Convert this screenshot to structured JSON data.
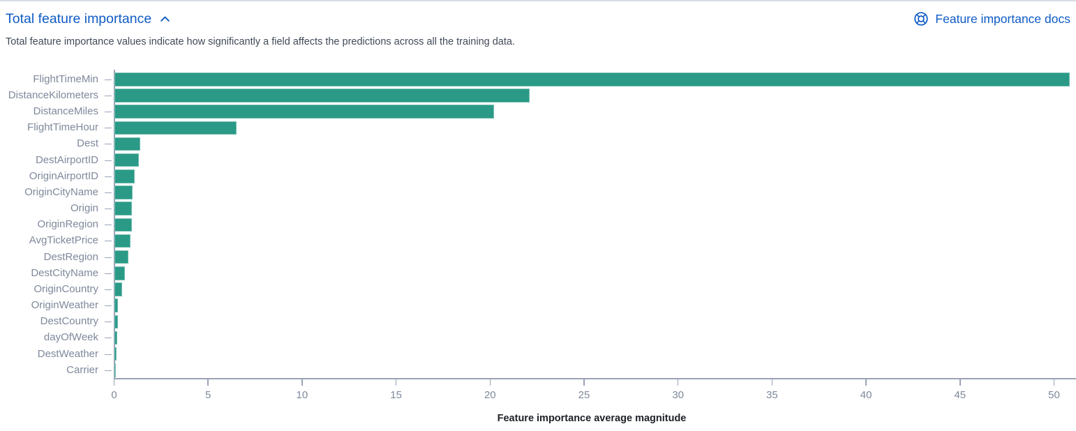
{
  "header": {
    "title": "Total feature importance",
    "docs_link_label": "Feature importance docs",
    "link_color": "#0f5bc5"
  },
  "description": "Total feature importance values indicate how significantly a field affects the predictions across all the training data.",
  "chart_data": {
    "type": "bar",
    "orientation": "horizontal",
    "title": "",
    "xlabel": "Feature importance average magnitude",
    "ylabel": "",
    "categories": [
      "FlightTimeMin",
      "DistanceKilometers",
      "DistanceMiles",
      "FlightTimeHour",
      "Dest",
      "DestAirportID",
      "OriginAirportID",
      "OriginCityName",
      "Origin",
      "OriginRegion",
      "AvgTicketPrice",
      "DestRegion",
      "DestCityName",
      "OriginCountry",
      "OriginWeather",
      "DestCountry",
      "dayOfWeek",
      "DestWeather",
      "Carrier"
    ],
    "values": [
      50.8,
      22.1,
      20.2,
      6.5,
      1.36,
      1.31,
      1.08,
      0.95,
      0.93,
      0.91,
      0.87,
      0.73,
      0.57,
      0.4,
      0.2,
      0.18,
      0.16,
      0.12,
      0.07
    ],
    "xticks": [
      0,
      5,
      10,
      15,
      20,
      25,
      30,
      35,
      40,
      45,
      50
    ],
    "xlim": [
      0,
      50.9
    ],
    "grid": false,
    "legend": "none",
    "bar_color": "#2a9a87",
    "axis_color": "#9aa3b6",
    "tick_label_color": "#7e899b",
    "axis_title_color": "#1d2026"
  }
}
